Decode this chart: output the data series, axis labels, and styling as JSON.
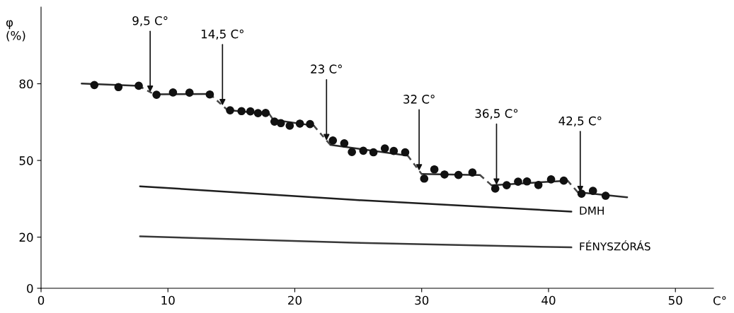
{
  "chart_data": {
    "type": "scatter",
    "ylabel": "φ\n(%)",
    "xlabel": "C°",
    "xlim": [
      0,
      53
    ],
    "ylim": [
      0,
      110
    ],
    "xticks": [
      0,
      10,
      20,
      30,
      40,
      50
    ],
    "yticks": [
      0,
      20,
      50,
      80
    ],
    "grid": false,
    "legend": false,
    "series": [
      {
        "color": "#111111",
        "marker": "circle",
        "x": [
          4.2,
          6.1,
          7.7,
          9.1,
          10.4,
          11.7,
          13.3,
          14.9,
          15.8,
          16.5,
          17.1,
          17.7,
          18.4,
          18.9,
          19.6,
          20.4,
          21.2,
          23.0,
          23.9,
          24.5,
          25.4,
          26.2,
          27.1,
          27.8,
          28.7,
          30.2,
          31.0,
          31.8,
          32.9,
          34.0,
          35.8,
          36.7,
          37.6,
          38.3,
          39.2,
          40.2,
          41.2,
          42.6,
          43.5,
          44.5
        ],
        "values": [
          79.5,
          78.7,
          79.2,
          75.7,
          76.6,
          76.5,
          75.8,
          69.6,
          69.3,
          69.2,
          68.5,
          68.6,
          65.2,
          64.6,
          63.6,
          64.4,
          64.2,
          57.8,
          56.7,
          53.3,
          53.8,
          53.2,
          54.7,
          53.7,
          53.2,
          42.9,
          46.5,
          44.5,
          44.3,
          45.3,
          39.0,
          40.3,
          41.7,
          41.8,
          40.4,
          42.6,
          42.1,
          37.0,
          38.1,
          36.2
        ]
      },
      {
        "type": "line",
        "color": "#2b2b2b",
        "line_style": "solid",
        "x": [
          3.2,
          7.7,
          8.3,
          8.9,
          13.3,
          14.0,
          14.7,
          18.0,
          18.1,
          18.3,
          21.5,
          22.1,
          22.8,
          28.9,
          29.5,
          30.0,
          34.6,
          35.0,
          35.5,
          41.5,
          41.9,
          42.3,
          46.2
        ],
        "values": [
          80.1,
          79.2,
          null,
          75.9,
          76.0,
          null,
          69.7,
          68.1,
          null,
          65.9,
          63.6,
          null,
          56.1,
          51.9,
          null,
          44.7,
          44.3,
          null,
          40.3,
          42.1,
          null,
          37.6,
          35.6
        ]
      },
      {
        "type": "line",
        "color": "#474747",
        "line_style": "dashed",
        "x": [
          7.7,
          8.9,
          11.0,
          13.3,
          14.7,
          16.0,
          18.0,
          18.3,
          20.0,
          21.5,
          22.8,
          26.0,
          28.9,
          30.0,
          32.0,
          34.6,
          35.5,
          38.0,
          41.5,
          42.3
        ],
        "values": [
          79.2,
          75.9,
          null,
          76.0,
          69.7,
          null,
          68.1,
          65.9,
          null,
          63.6,
          56.1,
          null,
          51.9,
          44.7,
          null,
          44.3,
          40.3,
          null,
          42.1,
          37.6
        ]
      },
      {
        "type": "line",
        "name": "DMH",
        "color": "#1e1e1e",
        "line_style": "solid",
        "x": [
          7.8,
          24.6,
          41.8
        ],
        "values": [
          39.9,
          34.6,
          30.0
        ]
      },
      {
        "type": "line",
        "name": "FÉNYSZÓRÁS",
        "color": "#383838",
        "line_style": "solid",
        "x": [
          7.8,
          24.6,
          41.8
        ],
        "values": [
          20.3,
          17.8,
          16.0
        ]
      }
    ],
    "annotations": [
      {
        "text": "9,5 C°",
        "x": 8.6,
        "y": 76.7
      },
      {
        "text": "14,5 C°",
        "x": 14.3,
        "y": 71.5
      },
      {
        "text": "23 C°",
        "x": 22.5,
        "y": 57.8
      },
      {
        "text": "32 C°",
        "x": 29.8,
        "y": 46.0
      },
      {
        "text": "36,5 C°",
        "x": 35.9,
        "y": 40.4
      },
      {
        "text": "42,5 C°",
        "x": 42.5,
        "y": 37.5
      }
    ]
  }
}
